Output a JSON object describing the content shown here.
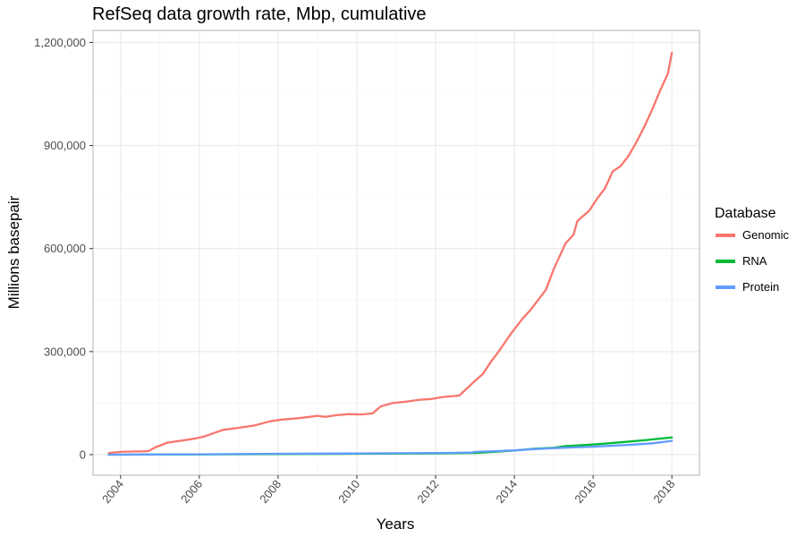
{
  "chart_data": {
    "type": "line",
    "title": "RefSeq data growth rate, Mbp, cumulative",
    "xlabel": "Years",
    "ylabel": "Millions basepair",
    "xlim": [
      2003.3,
      2018.7
    ],
    "ylim": [
      -60000,
      1235000
    ],
    "x_ticks": [
      2004,
      2006,
      2008,
      2010,
      2012,
      2014,
      2016,
      2018
    ],
    "x_tick_labels": [
      "2004",
      "2006",
      "2008",
      "2010",
      "2012",
      "2014",
      "2016",
      "2018"
    ],
    "y_ticks": [
      0,
      300000,
      600000,
      900000,
      1200000
    ],
    "y_tick_labels": [
      "0",
      "300,000",
      "600,000",
      "900,000",
      "1,200,000"
    ],
    "grid": true,
    "legend": {
      "title": "Database",
      "position": "right"
    },
    "series": [
      {
        "name": "Genomic",
        "color": "#F8766D",
        "x": [
          2003.7,
          2004.0,
          2004.3,
          2004.7,
          2004.9,
          2005.2,
          2005.5,
          2005.8,
          2006.1,
          2006.3,
          2006.6,
          2007.0,
          2007.4,
          2007.8,
          2008.1,
          2008.5,
          2008.8,
          2009.0,
          2009.2,
          2009.5,
          2009.8,
          2010.1,
          2010.4,
          2010.6,
          2010.9,
          2011.3,
          2011.6,
          2011.9,
          2012.2,
          2012.6,
          2013.0,
          2013.2,
          2013.4,
          2013.6,
          2013.9,
          2014.2,
          2014.4,
          2014.6,
          2014.8,
          2015.0,
          2015.3,
          2015.5,
          2015.6,
          2015.9,
          2016.1,
          2016.3,
          2016.5,
          2016.7,
          2016.9,
          2017.1,
          2017.3,
          2017.5,
          2017.7,
          2017.9,
          2018.0
        ],
        "values": [
          5000,
          8000,
          9000,
          10000,
          22000,
          35000,
          40000,
          45000,
          52000,
          60000,
          72000,
          78000,
          85000,
          97000,
          102000,
          106000,
          110000,
          113000,
          110000,
          115000,
          118000,
          117000,
          120000,
          140000,
          150000,
          155000,
          160000,
          162000,
          168000,
          172000,
          215000,
          235000,
          270000,
          300000,
          350000,
          395000,
          420000,
          450000,
          480000,
          540000,
          615000,
          640000,
          680000,
          710000,
          745000,
          775000,
          825000,
          840000,
          870000,
          910000,
          955000,
          1005000,
          1060000,
          1110000,
          1170000
        ]
      },
      {
        "name": "RNA",
        "color": "#00BA38",
        "x": [
          2003.7,
          2006.0,
          2008.0,
          2010.0,
          2012.0,
          2013.0,
          2013.5,
          2014.0,
          2014.5,
          2015.0,
          2015.3,
          2015.8,
          2016.3,
          2016.8,
          2017.3,
          2017.8,
          2018.0
        ],
        "values": [
          0,
          800,
          1500,
          2500,
          3500,
          5000,
          8000,
          12000,
          17000,
          20000,
          25000,
          28000,
          32000,
          37000,
          42000,
          48000,
          50000
        ]
      },
      {
        "name": "Protein",
        "color": "#619CFF",
        "x": [
          2003.7,
          2006.0,
          2008.0,
          2010.0,
          2012.0,
          2012.9,
          2013.0,
          2013.5,
          2014.0,
          2014.5,
          2015.0,
          2015.5,
          2016.0,
          2016.5,
          2017.0,
          2017.5,
          2018.0
        ],
        "values": [
          0,
          1000,
          2500,
          3500,
          5000,
          6000,
          8000,
          10000,
          12500,
          16000,
          19000,
          21000,
          23000,
          26000,
          29000,
          33000,
          40000
        ]
      }
    ]
  }
}
